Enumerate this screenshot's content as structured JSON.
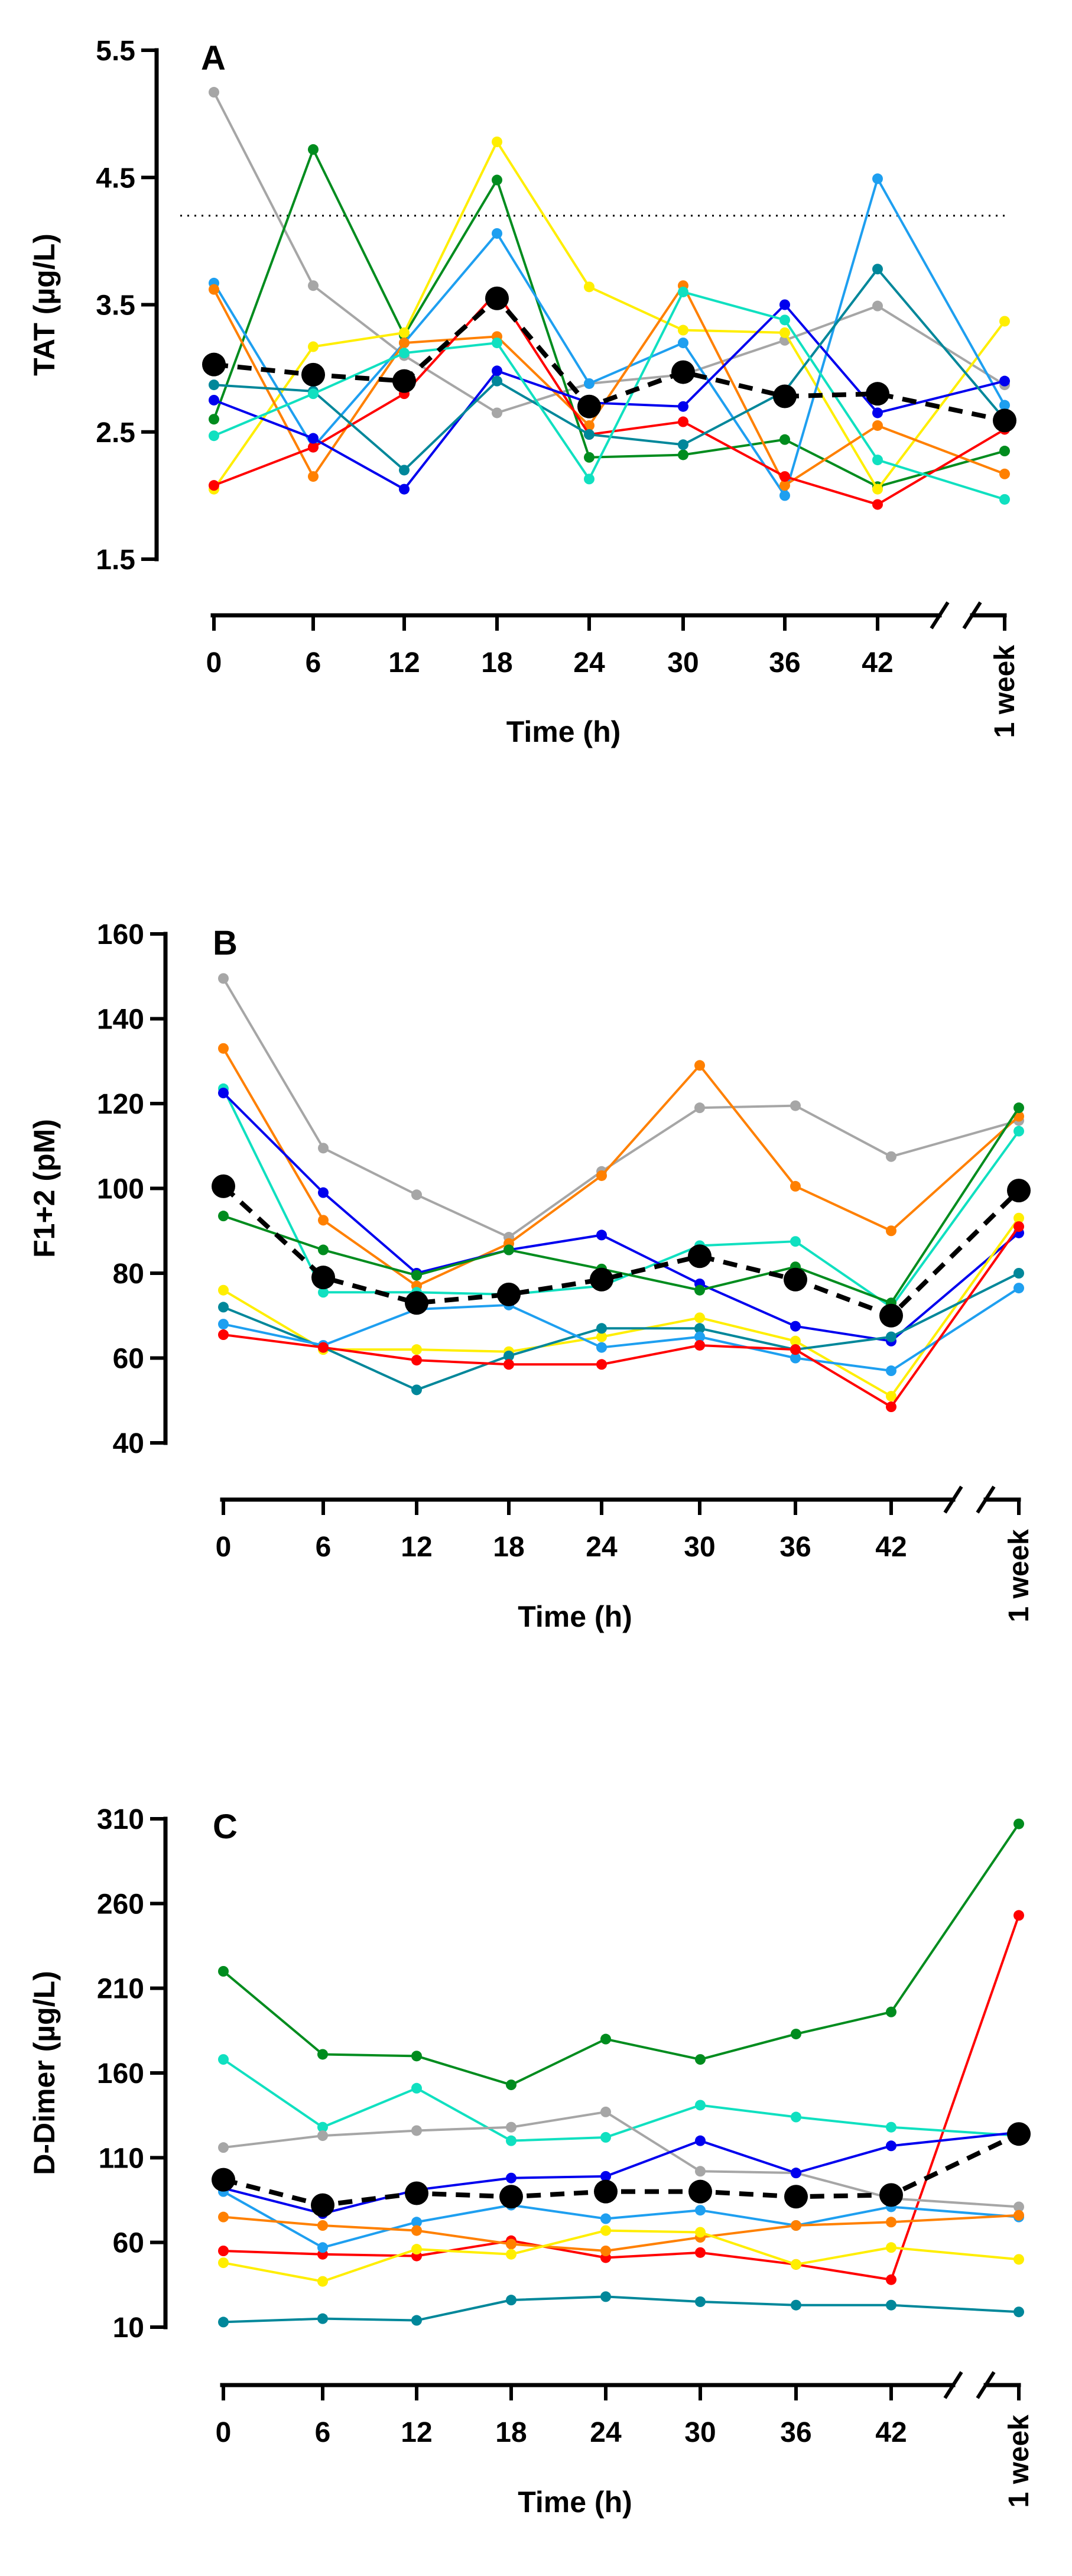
{
  "chart_data": [
    {
      "type": "line",
      "panel_label": "A",
      "ylabel": "TAT (µg/L)",
      "xlabel": "Time (h)",
      "ylim": [
        1.5,
        5.5
      ],
      "yticks": [
        "1.5",
        "2.5",
        "3.5",
        "4.5",
        "5.5"
      ],
      "ytick_values": [
        1.5,
        2.5,
        3.5,
        4.5,
        5.5
      ],
      "categories": [
        "0",
        "6",
        "12",
        "18",
        "24",
        "30",
        "36",
        "42",
        "1 week"
      ],
      "reference_line": 4.2,
      "series": [
        {
          "name": "gray",
          "color": "#a6a6a6",
          "values": [
            5.17,
            3.65,
            3.1,
            2.65,
            2.88,
            2.95,
            3.22,
            3.49,
            2.87
          ]
        },
        {
          "name": "green",
          "color": "#008c1e",
          "values": [
            2.6,
            4.72,
            3.26,
            4.48,
            2.3,
            2.32,
            2.44,
            2.07,
            2.35
          ]
        },
        {
          "name": "yellow",
          "color": "#ffee00",
          "values": [
            2.05,
            3.17,
            3.28,
            4.78,
            3.64,
            3.3,
            3.28,
            2.05,
            3.37
          ]
        },
        {
          "name": "light-blue",
          "color": "#1e9ff0",
          "values": [
            3.67,
            2.38,
            3.2,
            4.06,
            2.88,
            3.2,
            2.0,
            4.49,
            2.71
          ]
        },
        {
          "name": "orange",
          "color": "#ff8000",
          "values": [
            3.62,
            2.15,
            3.2,
            3.25,
            2.55,
            3.65,
            2.08,
            2.55,
            2.17
          ]
        },
        {
          "name": "red",
          "color": "#ff0000",
          "values": [
            2.08,
            2.38,
            2.8,
            3.6,
            2.48,
            2.58,
            2.15,
            1.93,
            2.52
          ]
        },
        {
          "name": "blue",
          "color": "#0000ee",
          "values": [
            2.75,
            2.45,
            2.05,
            2.98,
            2.73,
            2.7,
            3.5,
            2.65,
            2.9
          ]
        },
        {
          "name": "teal",
          "color": "#00879a",
          "values": [
            2.87,
            2.82,
            2.2,
            2.9,
            2.48,
            2.4,
            2.82,
            3.78,
            2.6
          ]
        },
        {
          "name": "cyan",
          "color": "#10e0c0",
          "values": [
            2.47,
            2.8,
            3.12,
            3.2,
            2.13,
            3.6,
            3.38,
            2.28,
            1.97
          ]
        }
      ],
      "mean": {
        "name": "mean",
        "color": "#000000",
        "values": [
          3.03,
          2.95,
          2.9,
          3.55,
          2.7,
          2.97,
          2.78,
          2.8,
          2.59
        ]
      }
    },
    {
      "type": "line",
      "panel_label": "B",
      "ylabel": "F1+2 (pM)",
      "xlabel": "Time (h)",
      "ylim": [
        40,
        160
      ],
      "yticks": [
        "40",
        "60",
        "80",
        "100",
        "120",
        "140",
        "160"
      ],
      "ytick_values": [
        40,
        60,
        80,
        100,
        120,
        140,
        160
      ],
      "categories": [
        "0",
        "6",
        "12",
        "18",
        "24",
        "30",
        "36",
        "42",
        "1 week"
      ],
      "series": [
        {
          "name": "gray",
          "color": "#a6a6a6",
          "values": [
            149.5,
            109.5,
            98.5,
            88.5,
            104,
            119,
            119.5,
            107.5,
            116
          ]
        },
        {
          "name": "orange",
          "color": "#ff8000",
          "values": [
            133,
            92.5,
            77,
            87,
            103,
            129,
            100.5,
            90,
            117
          ]
        },
        {
          "name": "cyan",
          "color": "#10e0c0",
          "values": [
            123.5,
            75.5,
            75.5,
            75,
            77,
            86.5,
            87.5,
            72,
            113.5
          ]
        },
        {
          "name": "blue",
          "color": "#0000ee",
          "values": [
            122.5,
            99,
            80,
            85.5,
            89,
            77.5,
            67.5,
            64,
            89.5
          ]
        },
        {
          "name": "green",
          "color": "#008c1e",
          "values": [
            93.5,
            85.5,
            79.5,
            85.5,
            81,
            76,
            81.5,
            73,
            119
          ]
        },
        {
          "name": "yellow",
          "color": "#ffee00",
          "values": [
            76,
            62,
            62,
            61.5,
            65,
            69.5,
            64,
            51,
            93
          ]
        },
        {
          "name": "teal",
          "color": "#00879a",
          "values": [
            72,
            62.5,
            52.5,
            60.5,
            67,
            67,
            62,
            65,
            80
          ]
        },
        {
          "name": "light-blue",
          "color": "#1e9ff0",
          "values": [
            68,
            63,
            71.5,
            72.5,
            62.5,
            65,
            60,
            57,
            76.5
          ]
        },
        {
          "name": "red",
          "color": "#ff0000",
          "values": [
            65.5,
            62.5,
            59.5,
            58.5,
            58.5,
            63,
            62,
            48.5,
            91
          ]
        }
      ],
      "mean": {
        "name": "mean",
        "color": "#000000",
        "values": [
          100.5,
          79,
          73,
          75,
          78.5,
          84,
          78.5,
          70,
          99.5
        ]
      }
    },
    {
      "type": "line",
      "panel_label": "C",
      "ylabel": "D-Dimer (µg/L)",
      "xlabel": "Time (h)",
      "ylim": [
        10,
        310
      ],
      "yticks": [
        "10",
        "60",
        "110",
        "160",
        "210",
        "260",
        "310"
      ],
      "ytick_values": [
        10,
        60,
        110,
        160,
        210,
        260,
        310
      ],
      "categories": [
        "0",
        "6",
        "12",
        "18",
        "24",
        "30",
        "36",
        "42",
        "1 week"
      ],
      "series": [
        {
          "name": "green",
          "color": "#008c1e",
          "values": [
            220,
            171,
            170,
            153,
            180,
            168,
            183,
            196,
            307
          ]
        },
        {
          "name": "red",
          "color": "#ff0000",
          "values": [
            55,
            53,
            52,
            61,
            51,
            54,
            47,
            38,
            253
          ]
        },
        {
          "name": "cyan",
          "color": "#10e0c0",
          "values": [
            168,
            128,
            151,
            120,
            122,
            141,
            134,
            128,
            123
          ]
        },
        {
          "name": "gray",
          "color": "#a6a6a6",
          "values": [
            116,
            123,
            126,
            128,
            137,
            102,
            101,
            86,
            81
          ]
        },
        {
          "name": "blue",
          "color": "#0000ee",
          "values": [
            92,
            77,
            91,
            98,
            99,
            120,
            101,
            117,
            125
          ]
        },
        {
          "name": "light-blue",
          "color": "#1e9ff0",
          "values": [
            90,
            57,
            72,
            82,
            74,
            79,
            70,
            81,
            75
          ]
        },
        {
          "name": "orange",
          "color": "#ff8000",
          "values": [
            75,
            70,
            67,
            59,
            55,
            63,
            70,
            72,
            76
          ]
        },
        {
          "name": "yellow",
          "color": "#ffee00",
          "values": [
            48,
            37,
            56,
            53,
            67,
            66,
            47,
            57,
            50
          ]
        },
        {
          "name": "teal",
          "color": "#00879a",
          "values": [
            13,
            15,
            14,
            26,
            28,
            25,
            23,
            23,
            19
          ]
        }
      ],
      "mean": {
        "name": "mean",
        "color": "#000000",
        "values": [
          97,
          82,
          89,
          87,
          90,
          90,
          87,
          88,
          124
        ]
      }
    }
  ]
}
